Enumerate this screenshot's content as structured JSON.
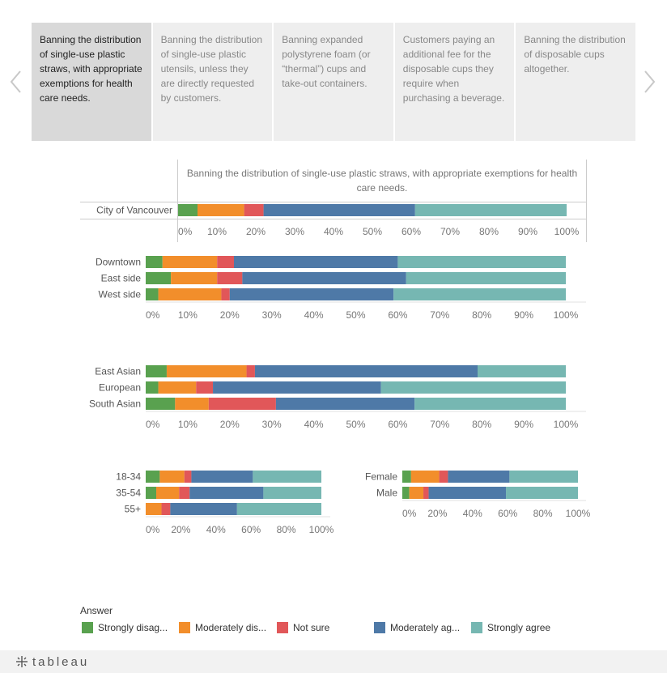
{
  "tabs": [
    {
      "label": "Banning the distribution of single-use plastic straws, with appropriate exemptions for health care needs.",
      "active": true
    },
    {
      "label": "Banning the distribution of single-use plastic utensils, unless they are directly requested by customers.",
      "active": false
    },
    {
      "label": "Banning expanded polystyrene foam (or “thermal”) cups and take-out containers.",
      "active": false
    },
    {
      "label": "Customers paying an additional fee for the disposable cups they require when purchasing a beverage.",
      "active": false
    },
    {
      "label": "Banning the distribution of disposable cups altogether.",
      "active": false
    }
  ],
  "legend": {
    "title": "Answer",
    "items": [
      {
        "label": "Strongly disag...",
        "color": "#59a14f"
      },
      {
        "label": "Moderately dis...",
        "color": "#f28e2b"
      },
      {
        "label": "Not sure",
        "color": "#e15759"
      },
      {
        "label": "Moderately ag...",
        "color": "#4e79a7"
      },
      {
        "label": "Strongly agree",
        "color": "#76b7b2"
      }
    ]
  },
  "footer": {
    "brand": "tableau"
  },
  "chart_data": [
    {
      "type": "bar",
      "orientation": "horizontal-stacked-100",
      "title": "Banning the distribution of single-use plastic straws, with appropriate exemptions for health care needs.",
      "categories": [
        "City of Vancouver"
      ],
      "series": [
        {
          "name": "Strongly disag...",
          "values": [
            5
          ]
        },
        {
          "name": "Moderately dis...",
          "values": [
            12
          ]
        },
        {
          "name": "Not sure",
          "values": [
            5
          ]
        },
        {
          "name": "Moderately ag...",
          "values": [
            39
          ]
        },
        {
          "name": "Strongly agree",
          "values": [
            39
          ]
        }
      ],
      "ticks": [
        "0%",
        "10%",
        "20%",
        "30%",
        "40%",
        "50%",
        "60%",
        "70%",
        "80%",
        "90%",
        "100%"
      ],
      "xlim": [
        0,
        100
      ]
    },
    {
      "type": "bar",
      "orientation": "horizontal-stacked-100",
      "categories": [
        "Downtown",
        "East side",
        "West side"
      ],
      "series": [
        {
          "name": "Strongly disag...",
          "values": [
            4,
            6,
            3
          ]
        },
        {
          "name": "Moderately dis...",
          "values": [
            13,
            11,
            15
          ]
        },
        {
          "name": "Not sure",
          "values": [
            4,
            6,
            2
          ]
        },
        {
          "name": "Moderately ag...",
          "values": [
            39,
            39,
            39
          ]
        },
        {
          "name": "Strongly agree",
          "values": [
            40,
            38,
            41
          ]
        }
      ],
      "ticks": [
        "0%",
        "10%",
        "20%",
        "30%",
        "40%",
        "50%",
        "60%",
        "70%",
        "80%",
        "90%",
        "100%"
      ],
      "xlim": [
        0,
        100
      ]
    },
    {
      "type": "bar",
      "orientation": "horizontal-stacked-100",
      "categories": [
        "East Asian",
        "European",
        "South Asian"
      ],
      "series": [
        {
          "name": "Strongly disag...",
          "values": [
            5,
            3,
            7
          ]
        },
        {
          "name": "Moderately dis...",
          "values": [
            19,
            9,
            8
          ]
        },
        {
          "name": "Not sure",
          "values": [
            2,
            4,
            16
          ]
        },
        {
          "name": "Moderately ag...",
          "values": [
            53,
            40,
            33
          ]
        },
        {
          "name": "Strongly agree",
          "values": [
            21,
            44,
            36
          ]
        }
      ],
      "ticks": [
        "0%",
        "10%",
        "20%",
        "30%",
        "40%",
        "50%",
        "60%",
        "70%",
        "80%",
        "90%",
        "100%"
      ],
      "xlim": [
        0,
        100
      ]
    },
    {
      "type": "bar",
      "orientation": "horizontal-stacked-100",
      "categories": [
        "18-34",
        "35-54",
        "55+"
      ],
      "series": [
        {
          "name": "Strongly disag...",
          "values": [
            8,
            6,
            0
          ]
        },
        {
          "name": "Moderately dis...",
          "values": [
            14,
            13,
            9
          ]
        },
        {
          "name": "Not sure",
          "values": [
            4,
            6,
            5
          ]
        },
        {
          "name": "Moderately ag...",
          "values": [
            35,
            42,
            38
          ]
        },
        {
          "name": "Strongly agree",
          "values": [
            39,
            33,
            48
          ]
        }
      ],
      "ticks": [
        "0%",
        "20%",
        "40%",
        "60%",
        "80%",
        "100%"
      ],
      "xlim": [
        0,
        100
      ]
    },
    {
      "type": "bar",
      "orientation": "horizontal-stacked-100",
      "categories": [
        "Female",
        "Male"
      ],
      "series": [
        {
          "name": "Strongly disag...",
          "values": [
            5,
            4
          ]
        },
        {
          "name": "Moderately dis...",
          "values": [
            16,
            8
          ]
        },
        {
          "name": "Not sure",
          "values": [
            5,
            3
          ]
        },
        {
          "name": "Moderately ag...",
          "values": [
            35,
            44
          ]
        },
        {
          "name": "Strongly agree",
          "values": [
            39,
            41
          ]
        }
      ],
      "ticks": [
        "0%",
        "20%",
        "40%",
        "60%",
        "80%",
        "100%"
      ],
      "xlim": [
        0,
        100
      ]
    }
  ]
}
